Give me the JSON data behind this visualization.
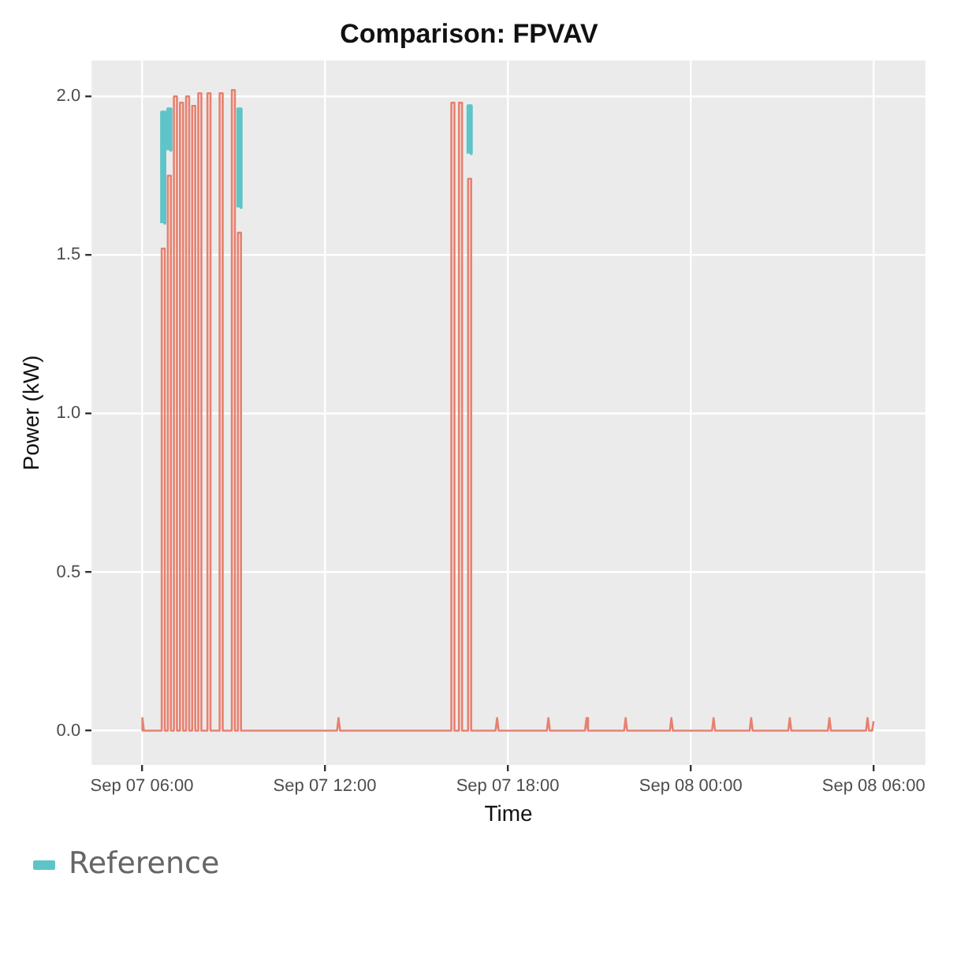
{
  "chart_data": {
    "type": "line",
    "title": "Comparison: FPVAV",
    "xlabel": "Time",
    "ylabel": "Power (kW)",
    "xlim": [
      "--09-07T04:21",
      "--09-08T07:42"
    ],
    "ylim": [
      -0.108,
      2.113
    ],
    "xticks": [
      {
        "value": "--09-07T06:00",
        "label": "Sep 07 06:00"
      },
      {
        "value": "--09-07T12:00",
        "label": "Sep 07 12:00"
      },
      {
        "value": "--09-07T18:00",
        "label": "Sep 07 18:00"
      },
      {
        "value": "--09-08T00:00",
        "label": "Sep 08 00:00"
      },
      {
        "value": "--09-08T06:00",
        "label": "Sep 08 06:00"
      }
    ],
    "yticks": [
      {
        "value": 0,
        "label": "0.0"
      },
      {
        "value": 0.5,
        "label": "0.5"
      },
      {
        "value": 1,
        "label": "1.0"
      },
      {
        "value": 1.5,
        "label": "1.5"
      },
      {
        "value": 2,
        "label": "2.0"
      }
    ],
    "grid": true,
    "legend": "bottom left",
    "marker": "none",
    "line_style": "solid",
    "series": [
      {
        "name": "Reference",
        "color": "#5fc4c8",
        "x": [
          "--09-07T06:39",
          "--09-07T06:39",
          "--09-07T06:45",
          "--09-07T06:45",
          "--09-07T06:48",
          "--09-07T06:51",
          "--09-07T06:51",
          "--09-07T06:57",
          "--09-07T06:57",
          "--09-07T07:00",
          "--09-07T09:09",
          "--09-07T09:09",
          "--09-07T09:15",
          "--09-07T09:15",
          "--09-07T12:00",
          "--09-07T16:42",
          "--09-07T16:42",
          "--09-07T16:48",
          "--09-07T16:48"
        ],
        "values": [
          1.6,
          1.95,
          1.95,
          1.6,
          null,
          1.83,
          1.96,
          1.96,
          1.83,
          null,
          1.65,
          1.96,
          1.96,
          1.65,
          null,
          1.82,
          1.97,
          1.97,
          1.82
        ]
      },
      {
        "color": "#e8806f",
        "x": [
          "--09-07T06:00",
          "--09-07T06:01",
          "--09-07T06:04",
          "--09-07T06:39",
          "--09-07T06:39",
          "--09-07T06:45",
          "--09-07T06:45",
          "--09-07T06:51",
          "--09-07T06:51",
          "--09-07T06:57",
          "--09-07T06:57",
          "--09-07T07:03",
          "--09-07T07:03",
          "--09-07T07:09",
          "--09-07T07:09",
          "--09-07T07:15",
          "--09-07T07:15",
          "--09-07T07:21",
          "--09-07T07:21",
          "--09-07T07:27",
          "--09-07T07:27",
          "--09-07T07:33",
          "--09-07T07:33",
          "--09-07T07:39",
          "--09-07T07:39",
          "--09-07T07:45",
          "--09-07T07:45",
          "--09-07T07:51",
          "--09-07T07:51",
          "--09-07T07:57",
          "--09-07T07:57",
          "--09-07T08:09",
          "--09-07T08:09",
          "--09-07T08:15",
          "--09-07T08:15",
          "--09-07T08:33",
          "--09-07T08:33",
          "--09-07T08:39",
          "--09-07T08:39",
          "--09-07T08:57",
          "--09-07T08:57",
          "--09-07T09:03",
          "--09-07T09:03",
          "--09-07T09:09",
          "--09-07T09:09",
          "--09-07T09:15",
          "--09-07T09:15",
          "--09-07T12:24",
          "--09-07T12:27",
          "--09-07T12:30",
          "--09-07T16:09",
          "--09-07T16:09",
          "--09-07T16:15",
          "--09-07T16:15",
          "--09-07T16:24",
          "--09-07T16:24",
          "--09-07T16:30",
          "--09-07T16:30",
          "--09-07T16:42",
          "--09-07T16:42",
          "--09-07T16:48",
          "--09-07T16:48",
          "--09-07T17:36",
          "--09-07T17:39",
          "--09-07T17:42",
          "--09-07T19:17",
          "--09-07T19:20",
          "--09-07T19:23",
          "--09-07T20:32",
          "--09-07T20:35",
          "--09-07T20:38",
          "--09-07T21:49",
          "--09-07T21:52",
          "--09-07T21:55",
          "--09-07T23:19",
          "--09-07T23:22",
          "--09-07T23:25",
          "--09-08T00:42",
          "--09-08T00:45",
          "--09-08T00:48",
          "--09-08T01:56",
          "--09-08T01:59",
          "--09-08T02:02",
          "--09-08T03:12",
          "--09-08T03:15",
          "--09-08T03:18",
          "--09-08T04:30",
          "--09-08T04:33",
          "--09-08T04:36",
          "--09-08T05:45",
          "--09-08T05:48",
          "--09-08T05:51",
          "--09-08T05:57",
          "--09-08T06:00"
        ],
        "values": [
          0,
          0.04,
          0,
          0,
          1.52,
          1.52,
          0,
          0,
          1.75,
          1.75,
          0,
          0,
          2.0,
          2.0,
          0,
          0,
          1.98,
          1.98,
          0,
          0,
          2.0,
          2.0,
          0,
          0,
          1.97,
          1.97,
          0,
          0,
          2.01,
          2.01,
          0,
          0,
          2.01,
          2.01,
          0,
          0,
          2.01,
          2.01,
          0,
          0,
          2.02,
          2.02,
          0,
          0,
          1.57,
          1.57,
          0,
          0,
          0.04,
          0,
          0,
          1.98,
          1.98,
          0,
          0,
          1.98,
          1.98,
          0,
          0,
          1.74,
          1.74,
          0,
          0,
          0.04,
          0,
          0,
          0.04,
          0,
          0,
          0.04,
          0,
          0,
          0.04,
          0,
          0,
          0.04,
          0,
          0,
          0.04,
          0,
          0,
          0.04,
          0,
          0,
          0.04,
          0,
          0,
          0.04,
          0,
          0,
          0.04,
          0,
          0,
          0.03
        ]
      }
    ]
  }
}
